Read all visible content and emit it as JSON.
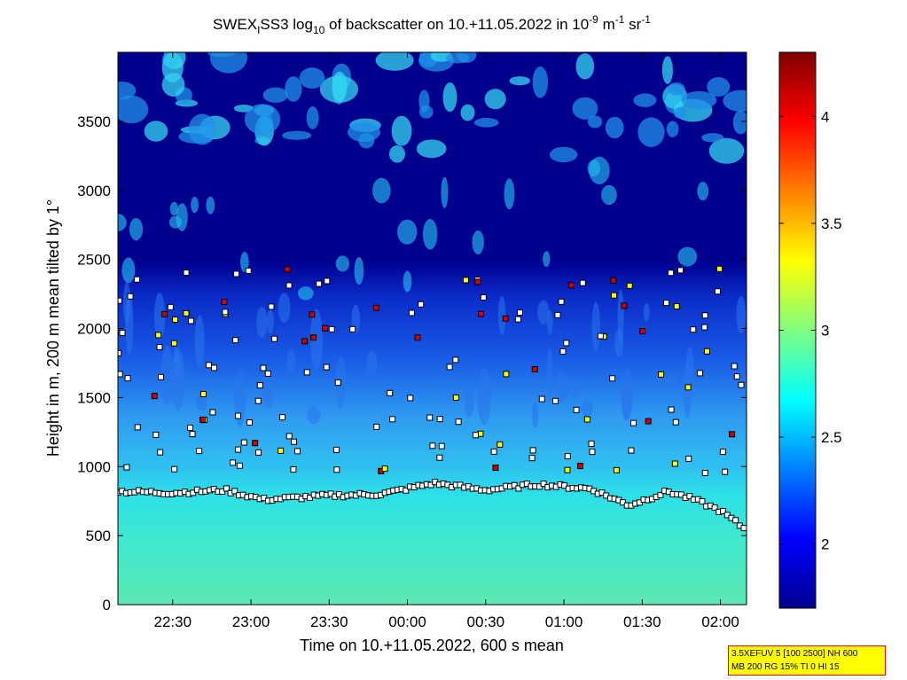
{
  "chart_data": {
    "type": "heatmap",
    "title": {
      "prefix": "SWEX",
      "sub1": "I",
      "part2": "SS3 log",
      "sub2": "10",
      "part3": " of backscatter on 10.+11.05.2022 in 10",
      "sup1": "-9",
      "part4": " m",
      "sup2": "-1",
      "part5": " sr",
      "sup3": "-1"
    },
    "xlabel": "Time on 10.+11.05.2022, 600 s mean",
    "ylabel": "Height in m, 200 m mean tilted by 1°",
    "x_ticks": [
      "22:30",
      "23:00",
      "23:30",
      "00:00",
      "00:30",
      "01:00",
      "01:30",
      "02:00"
    ],
    "y_ticks": [
      "0",
      "500",
      "1000",
      "1500",
      "2000",
      "2500",
      "3000",
      "3500"
    ],
    "y_tick_values": [
      0,
      500,
      1000,
      1500,
      2000,
      2500,
      3000,
      3500
    ],
    "xlim_minutes_from_22_30": [
      -21,
      220
    ],
    "ylim": [
      0,
      4000
    ],
    "colorbar": {
      "ticks": [
        "2",
        "2.5",
        "3",
        "3.5",
        "4"
      ],
      "tick_values": [
        2,
        2.5,
        3,
        3.5,
        4
      ],
      "range": [
        1.7,
        4.3
      ],
      "colormap": "jet"
    },
    "layers": [
      {
        "name": "aerosol-layer",
        "values": [
          [
            -21,
            820
          ],
          [
            0,
            810
          ],
          [
            20,
            830
          ],
          [
            35,
            760
          ],
          [
            60,
            790
          ],
          [
            80,
            800
          ],
          [
            100,
            880
          ],
          [
            120,
            830
          ],
          [
            140,
            870
          ],
          [
            160,
            840
          ],
          [
            175,
            720
          ],
          [
            190,
            820
          ],
          [
            200,
            760
          ],
          [
            210,
            680
          ],
          [
            220,
            540
          ]
        ]
      }
    ],
    "grid": false,
    "legend": "none"
  },
  "info_box": {
    "line1": "3.5XEFUV 5 [100 2500] NH 600",
    "line2": "MB 200 RG 15% TI 0 HI 15"
  }
}
